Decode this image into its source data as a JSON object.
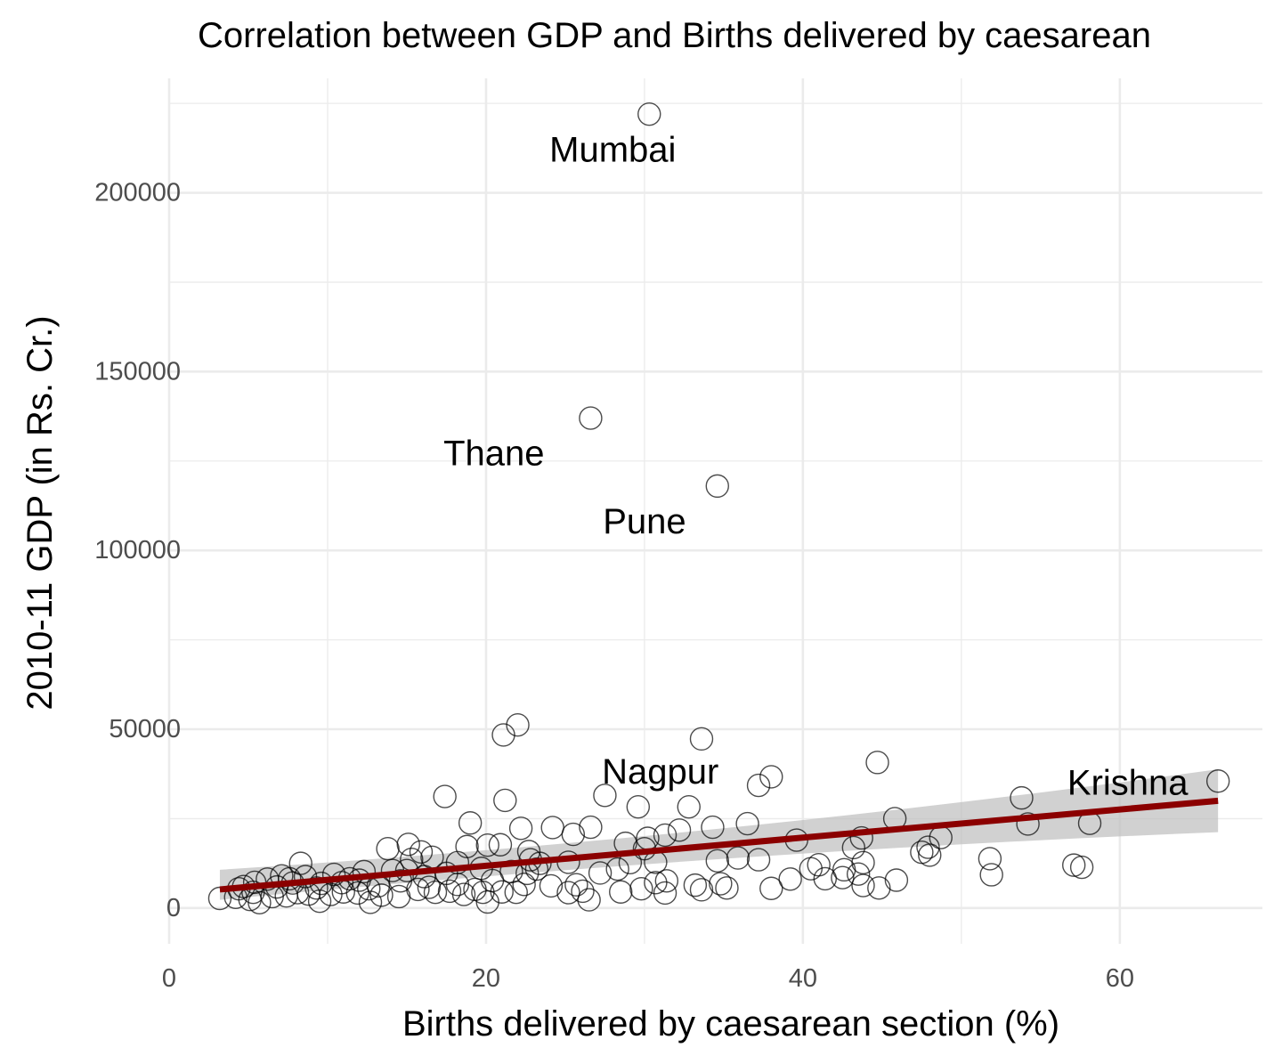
{
  "chart_data": {
    "type": "scatter",
    "title": "Correlation between GDP and Births delivered by caesarean",
    "xlabel": "Births delivered by caesarean section (%)",
    "ylabel": "2010-11 GDP (in Rs. Cr.)",
    "xlim": [
      0,
      69
    ],
    "ylim": [
      -10000,
      232000
    ],
    "x_ticks": [
      0,
      20,
      40,
      60
    ],
    "y_ticks": [
      0,
      50000,
      100000,
      150000,
      200000
    ],
    "x_tick_labels": [
      "0",
      "20",
      "40",
      "60"
    ],
    "y_tick_labels": [
      "0",
      "50000",
      "100000",
      "150000",
      "200000"
    ],
    "grid": true,
    "colors": {
      "points": "#000000",
      "trend_line": "#8b0000",
      "confidence_band": "#bebebe",
      "grid": "#ebebeb"
    },
    "annotations": [
      {
        "label": "Mumbai",
        "x": 28,
        "y": 212000
      },
      {
        "label": "Thane",
        "x": 20.5,
        "y": 127000
      },
      {
        "label": "Pune",
        "x": 30,
        "y": 108000
      },
      {
        "label": "Nagpur",
        "x": 31,
        "y": 38000
      },
      {
        "label": "Krishna",
        "x": 60.5,
        "y": 35000
      }
    ],
    "trend": {
      "x": [
        3.2,
        66.2
      ],
      "y": [
        5200,
        30000
      ],
      "band_lower": [
        2300,
        21200
      ],
      "band_upper": [
        10700,
        38800
      ]
    },
    "points": [
      [
        30.3,
        222000
      ],
      [
        26.6,
        137000
      ],
      [
        34.6,
        118000
      ],
      [
        22.0,
        51200
      ],
      [
        21.1,
        48400
      ],
      [
        33.6,
        47300
      ],
      [
        44.7,
        40700
      ],
      [
        38.0,
        36700
      ],
      [
        37.2,
        34300
      ],
      [
        66.2,
        35500
      ],
      [
        27.5,
        31500
      ],
      [
        17.4,
        31200
      ],
      [
        53.8,
        30800
      ],
      [
        21.2,
        30100
      ],
      [
        29.6,
        28300
      ],
      [
        32.8,
        28300
      ],
      [
        45.8,
        25000
      ],
      [
        19.0,
        23800
      ],
      [
        26.6,
        22600
      ],
      [
        24.2,
        22500
      ],
      [
        34.3,
        22600
      ],
      [
        22.2,
        22300
      ],
      [
        36.5,
        23600
      ],
      [
        58.1,
        23700
      ],
      [
        54.2,
        23500
      ],
      [
        25.5,
        20600
      ],
      [
        31.3,
        20400
      ],
      [
        30.2,
        19500
      ],
      [
        32.2,
        21800
      ],
      [
        39.6,
        19000
      ],
      [
        48.7,
        19700
      ],
      [
        43.7,
        19600
      ],
      [
        28.8,
        18100
      ],
      [
        18.8,
        17200
      ],
      [
        20.1,
        17600
      ],
      [
        20.9,
        17700
      ],
      [
        13.8,
        16600
      ],
      [
        15.1,
        17800
      ],
      [
        22.7,
        15800
      ],
      [
        47.9,
        17000
      ],
      [
        47.5,
        15600
      ],
      [
        48.0,
        14800
      ],
      [
        43.2,
        16900
      ],
      [
        30.0,
        16600
      ],
      [
        15.9,
        15700
      ],
      [
        22.8,
        13500
      ],
      [
        34.6,
        13200
      ],
      [
        35.9,
        14000
      ],
      [
        37.2,
        13500
      ],
      [
        30.7,
        12800
      ],
      [
        29.1,
        12700
      ],
      [
        15.3,
        13600
      ],
      [
        16.6,
        14200
      ],
      [
        18.2,
        12700
      ],
      [
        25.2,
        12800
      ],
      [
        28.3,
        10900
      ],
      [
        41.0,
        12100
      ],
      [
        43.8,
        12700
      ],
      [
        51.8,
        13800
      ],
      [
        57.1,
        12000
      ],
      [
        57.6,
        11400
      ],
      [
        40.5,
        11000
      ],
      [
        42.6,
        10700
      ],
      [
        19.7,
        11100
      ],
      [
        27.2,
        9800
      ],
      [
        8.3,
        12500
      ],
      [
        10.4,
        9400
      ],
      [
        12.3,
        10200
      ],
      [
        14.1,
        10500
      ],
      [
        17.5,
        9700
      ],
      [
        21.6,
        10200
      ],
      [
        23.2,
        10900
      ],
      [
        43.5,
        9500
      ],
      [
        42.5,
        8500
      ],
      [
        51.9,
        9300
      ],
      [
        39.2,
        8100
      ],
      [
        41.4,
        8200
      ],
      [
        45.9,
        7800
      ],
      [
        31.4,
        7600
      ],
      [
        30.7,
        7100
      ],
      [
        33.2,
        6400
      ],
      [
        34.8,
        6800
      ],
      [
        38.0,
        5500
      ],
      [
        35.2,
        5600
      ],
      [
        43.8,
        6300
      ],
      [
        44.8,
        5600
      ],
      [
        25.7,
        6500
      ],
      [
        24.1,
        6200
      ],
      [
        19.3,
        5200
      ],
      [
        18.2,
        6600
      ],
      [
        16.4,
        5800
      ],
      [
        14.6,
        7600
      ],
      [
        13.2,
        6200
      ],
      [
        12.0,
        7800
      ],
      [
        10.9,
        7100
      ],
      [
        9.6,
        6900
      ],
      [
        8.6,
        8800
      ],
      [
        7.6,
        8200
      ],
      [
        7.1,
        9000
      ],
      [
        6.2,
        8100
      ],
      [
        5.4,
        7200
      ],
      [
        4.4,
        5400
      ],
      [
        3.2,
        2700
      ],
      [
        4.2,
        3000
      ],
      [
        5.1,
        2400
      ],
      [
        5.7,
        1500
      ],
      [
        6.5,
        3200
      ],
      [
        7.4,
        3400
      ],
      [
        8.1,
        4300
      ],
      [
        8.8,
        3900
      ],
      [
        9.5,
        1900
      ],
      [
        10.2,
        3800
      ],
      [
        11.0,
        4500
      ],
      [
        11.9,
        4200
      ],
      [
        12.7,
        1600
      ],
      [
        13.4,
        3600
      ],
      [
        14.5,
        3200
      ],
      [
        15.7,
        5200
      ],
      [
        16.8,
        4400
      ],
      [
        17.7,
        4700
      ],
      [
        18.6,
        3800
      ],
      [
        19.8,
        4400
      ],
      [
        21.0,
        4500
      ],
      [
        21.9,
        4400
      ],
      [
        22.4,
        6600
      ],
      [
        25.2,
        4300
      ],
      [
        26.1,
        4700
      ],
      [
        26.5,
        2300
      ],
      [
        28.5,
        4500
      ],
      [
        29.8,
        5400
      ],
      [
        31.3,
        4200
      ],
      [
        33.6,
        5100
      ],
      [
        22.6,
        9700
      ],
      [
        20.4,
        7700
      ],
      [
        16.1,
        8800
      ],
      [
        12.6,
        5400
      ],
      [
        9.3,
        5600
      ],
      [
        6.8,
        5900
      ],
      [
        5.3,
        4400
      ],
      [
        4.7,
        6000
      ],
      [
        7.8,
        7000
      ],
      [
        11.4,
        8200
      ],
      [
        20.1,
        1700
      ],
      [
        23.4,
        12500
      ],
      [
        15.0,
        10500
      ]
    ]
  }
}
